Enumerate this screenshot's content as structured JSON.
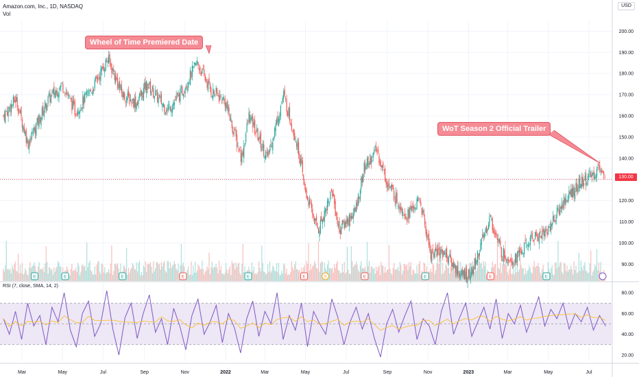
{
  "header": {
    "title": "Amazon.com, Inc., 1D, NASDAQ",
    "volume_label": "Vol",
    "currency": "USD"
  },
  "annotations": {
    "wot_premiere": "Wheel of Time Premiered Date",
    "wot_trailer": "WoT Season 2 Official Trailer"
  },
  "last_price_label": "130.00",
  "rsi_label": "RSI (7, close, SMA, 14, 2)",
  "colors": {
    "up": "#26a69a",
    "down": "#ef5350",
    "rsi": "#7e57c2",
    "rsi_ma": "#fbc02d",
    "rsi_band": "#ede7f6",
    "annotation": "#f58b94",
    "last_price": "#f23645"
  },
  "chart_data": [
    {
      "type": "candlestick",
      "title": "Amazon.com, Inc., 1D, NASDAQ",
      "y_axis_ticks": [
        "90.00",
        "100.00",
        "110.00",
        "120.00",
        "130.00",
        "140.00",
        "150.00",
        "160.00",
        "170.00",
        "180.00",
        "190.00",
        "200.00"
      ],
      "ylim": [
        82,
        205
      ],
      "x_axis_ticks": [
        "Mar",
        "May",
        "Jul",
        "Sep",
        "Nov",
        "2022",
        "Mar",
        "May",
        "Jul",
        "Sep",
        "Nov",
        "2023",
        "Mar",
        "May",
        "Jul"
      ],
      "close_path": [
        {
          "date": "2021-02-01",
          "close": 160
        },
        {
          "date": "2021-02-20",
          "close": 168
        },
        {
          "date": "2021-03-10",
          "close": 147
        },
        {
          "date": "2021-04-10",
          "close": 168
        },
        {
          "date": "2021-05-01",
          "close": 175
        },
        {
          "date": "2021-05-20",
          "close": 162
        },
        {
          "date": "2021-06-15",
          "close": 173
        },
        {
          "date": "2021-07-08",
          "close": 187
        },
        {
          "date": "2021-07-30",
          "close": 170
        },
        {
          "date": "2021-08-20",
          "close": 166
        },
        {
          "date": "2021-09-05",
          "close": 175
        },
        {
          "date": "2021-10-05",
          "close": 163
        },
        {
          "date": "2021-10-25",
          "close": 170
        },
        {
          "date": "2021-11-19",
          "close": 185
        },
        {
          "date": "2021-12-10",
          "close": 172
        },
        {
          "date": "2021-12-31",
          "close": 167
        },
        {
          "date": "2022-01-25",
          "close": 140
        },
        {
          "date": "2022-02-05",
          "close": 160
        },
        {
          "date": "2022-03-05",
          "close": 140
        },
        {
          "date": "2022-03-29",
          "close": 170
        },
        {
          "date": "2022-04-20",
          "close": 145
        },
        {
          "date": "2022-04-30",
          "close": 125
        },
        {
          "date": "2022-05-20",
          "close": 106
        },
        {
          "date": "2022-06-10",
          "close": 125
        },
        {
          "date": "2022-06-20",
          "close": 106
        },
        {
          "date": "2022-07-15",
          "close": 115
        },
        {
          "date": "2022-07-28",
          "close": 135
        },
        {
          "date": "2022-08-16",
          "close": 144
        },
        {
          "date": "2022-09-01",
          "close": 128
        },
        {
          "date": "2022-09-30",
          "close": 113
        },
        {
          "date": "2022-10-20",
          "close": 120
        },
        {
          "date": "2022-11-05",
          "close": 95
        },
        {
          "date": "2022-11-25",
          "close": 96
        },
        {
          "date": "2022-12-20",
          "close": 85
        },
        {
          "date": "2023-01-05",
          "close": 85
        },
        {
          "date": "2023-02-02",
          "close": 112
        },
        {
          "date": "2023-02-20",
          "close": 95
        },
        {
          "date": "2023-03-10",
          "close": 92
        },
        {
          "date": "2023-04-10",
          "close": 103
        },
        {
          "date": "2023-04-28",
          "close": 105
        },
        {
          "date": "2023-05-25",
          "close": 120
        },
        {
          "date": "2023-06-15",
          "close": 127
        },
        {
          "date": "2023-07-10",
          "close": 133
        },
        {
          "date": "2023-07-19",
          "close": 136
        },
        {
          "date": "2023-07-26",
          "close": 129
        }
      ],
      "last_close": 130.0,
      "volume_series": "Vol"
    },
    {
      "type": "line",
      "title": "RSI (7, close, SMA, 14, 2)",
      "y_axis_ticks": [
        "20.00",
        "40.00",
        "60.00",
        "80.00"
      ],
      "ylim": [
        14,
        86
      ],
      "band": [
        30,
        70
      ],
      "midline": 50,
      "series": [
        {
          "values": [
            55,
            40,
            62,
            35,
            70,
            48,
            58,
            30,
            66,
            52,
            80,
            44,
            28,
            60,
            72,
            38,
            50,
            82,
            45,
            20,
            56,
            70,
            36,
            60,
            78,
            42,
            55,
            30,
            65,
            48,
            25,
            58,
            74,
            40,
            52,
            68,
            32,
            60,
            46,
            22,
            55,
            72,
            38,
            62,
            50,
            80,
            35,
            58,
            44,
            70,
            28,
            62,
            50,
            40,
            74,
            56,
            30,
            52,
            66,
            45,
            60,
            36,
            18,
            50,
            64,
            42,
            58,
            72,
            35,
            55,
            48,
            30,
            62,
            80,
            40,
            56,
            70,
            38,
            52,
            66,
            45,
            74,
            36,
            60,
            50,
            68,
            42,
            58,
            76,
            48,
            64,
            55,
            70,
            45,
            60,
            52,
            66,
            44,
            58,
            48
          ]
        }
      ]
    }
  ]
}
